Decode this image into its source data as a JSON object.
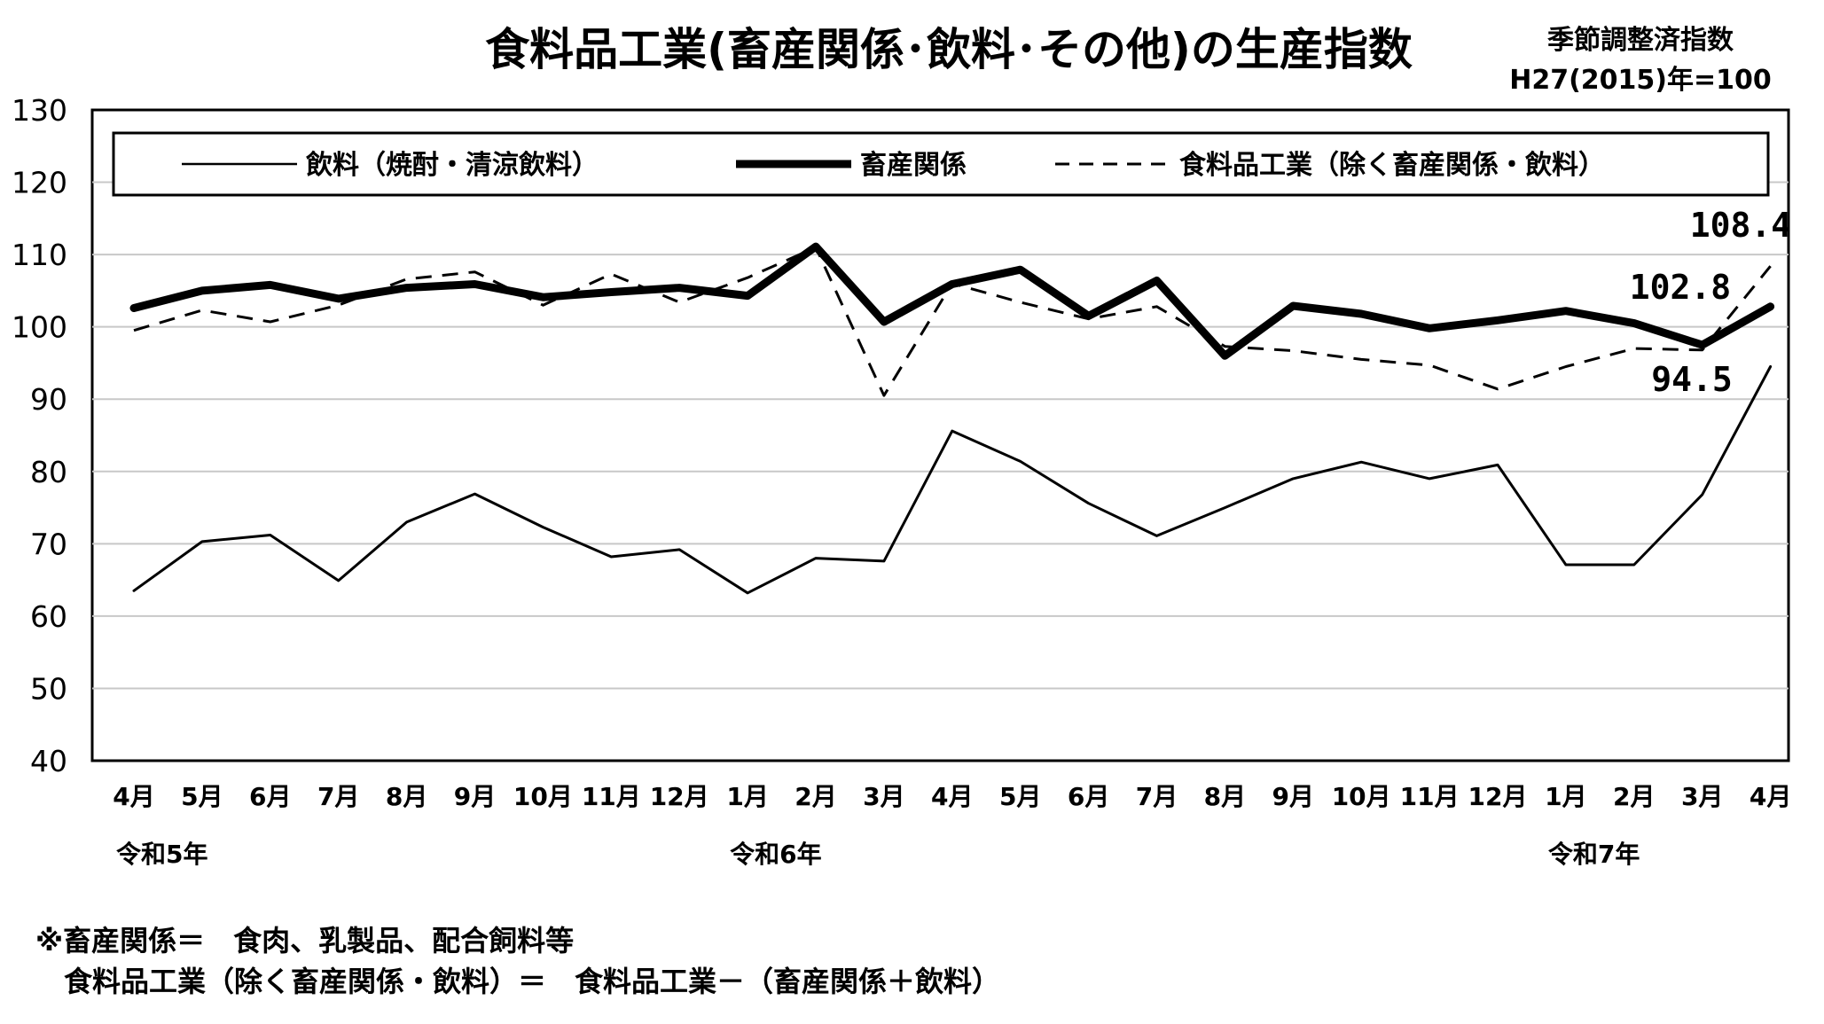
{
  "chart_data": {
    "type": "line",
    "title": "食料品工業(畜産関係･飲料･その他)の生産指数",
    "subtitle_line1": "季節調整済指数",
    "subtitle_line2": "H27(2015)年=100",
    "ylim": [
      40,
      130
    ],
    "yticks": [
      40,
      50,
      60,
      70,
      80,
      90,
      100,
      110,
      120,
      130
    ],
    "grid": true,
    "legend_placement": "top",
    "categories": [
      "4月",
      "5月",
      "6月",
      "7月",
      "8月",
      "9月",
      "10月",
      "11月",
      "12月",
      "1月",
      "2月",
      "3月",
      "4月",
      "5月",
      "6月",
      "7月",
      "8月",
      "9月",
      "10月",
      "11月",
      "12月",
      "1月",
      "2月",
      "3月",
      "4月"
    ],
    "year_labels": [
      {
        "index": 0,
        "text": "令和5年"
      },
      {
        "index": 9,
        "text": "令和6年"
      },
      {
        "index": 21,
        "text": "令和7年"
      }
    ],
    "series": [
      {
        "name": "飲料（焼酎・清涼飲料）",
        "style": "thin",
        "values": [
          63.5,
          70.3,
          71.2,
          64.9,
          73.0,
          76.9,
          72.3,
          68.2,
          69.2,
          63.2,
          68.0,
          67.6,
          85.6,
          81.4,
          75.6,
          71.1,
          75.0,
          79.0,
          81.3,
          79.0,
          80.9,
          67.1,
          67.1,
          76.8,
          94.5
        ]
      },
      {
        "name": "畜産関係",
        "style": "thick",
        "values": [
          102.6,
          105.0,
          105.8,
          103.9,
          105.4,
          105.9,
          104.1,
          104.8,
          105.4,
          104.3,
          111.1,
          100.7,
          105.9,
          107.9,
          101.5,
          106.4,
          96.0,
          102.9,
          101.8,
          99.8,
          100.9,
          102.2,
          100.5,
          97.5,
          102.8
        ]
      },
      {
        "name": "食料品工業（除く畜産関係・飲料）",
        "style": "dashed",
        "values": [
          99.5,
          102.3,
          100.7,
          103.0,
          106.6,
          107.6,
          103.0,
          107.3,
          103.4,
          106.8,
          111.0,
          90.5,
          106.0,
          103.4,
          101.1,
          102.8,
          97.3,
          96.7,
          95.5,
          94.7,
          91.4,
          94.5,
          97.0,
          96.8,
          108.4
        ]
      }
    ],
    "annotations": [
      {
        "text": "108.4",
        "series": 2,
        "index": 24
      },
      {
        "text": "102.8",
        "series": 1,
        "index": 24
      },
      {
        "text": "94.5",
        "series": 0,
        "index": 24
      }
    ]
  },
  "notes": {
    "line1": "※畜産関係＝　食肉、乳製品、配合飼料等",
    "line2": "　食料品工業（除く畜産関係・飲料）＝　食料品工業－（畜産関係＋飲料）"
  }
}
